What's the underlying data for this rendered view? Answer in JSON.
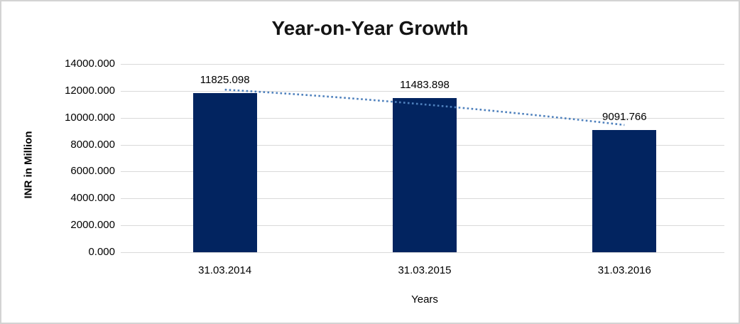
{
  "chart": {
    "title": "Year-on-Year Growth",
    "y_axis_title": "INR in Million",
    "x_axis_title": "Years"
  },
  "chart_data": {
    "type": "bar",
    "title": "Year-on-Year Growth",
    "xlabel": "Years",
    "ylabel": "INR in Million",
    "categories": [
      "31.03.2014",
      "31.03.2015",
      "31.03.2016"
    ],
    "values": [
      11825.098,
      11483.898,
      9091.766
    ],
    "data_labels": [
      "11825.098",
      "11483.898",
      "9091.766"
    ],
    "y_tick_labels": [
      "14000.000",
      "12000.000",
      "10000.000",
      "8000.000",
      "6000.000",
      "4000.000",
      "2000.000",
      "0.000"
    ],
    "ylim": [
      0,
      14000
    ],
    "grid": "horizontal-only",
    "legend": "none",
    "colors": {
      "bar": "#022460",
      "trendline": "#4f81bd",
      "gridline": "#d9d9d9",
      "text": "#000000"
    },
    "trendline": {
      "style": "dotted",
      "color": "#4f81bd",
      "description": "descending dotted trendline across bar tops"
    }
  }
}
